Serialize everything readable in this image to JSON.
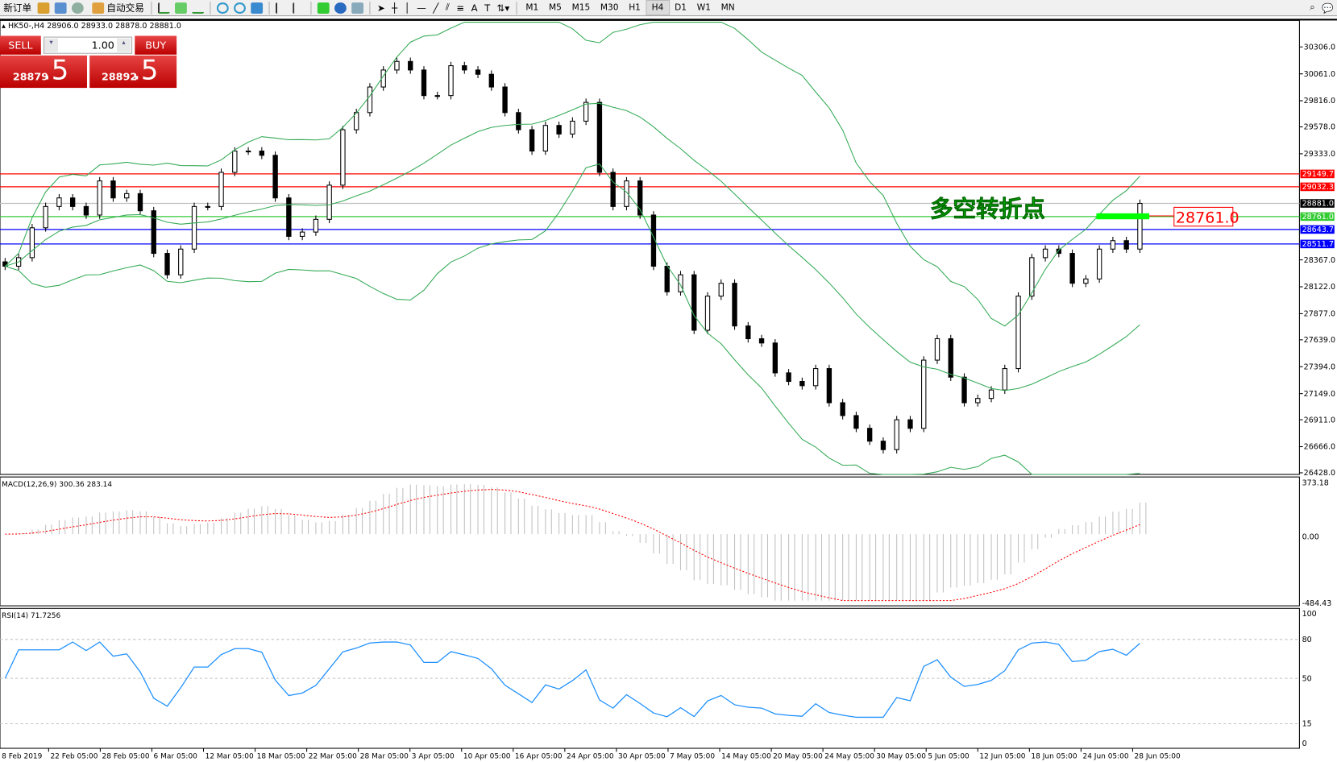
{
  "toolbar": {
    "new_order": "新订单",
    "auto_trading": "自动交易",
    "timeframes": [
      "M1",
      "M5",
      "M15",
      "M30",
      "H1",
      "H4",
      "D1",
      "W1",
      "MN"
    ],
    "active_timeframe": "H4"
  },
  "info": "HK50-,H4  28906.0 28933.0 28878.0 28881.0",
  "trade": {
    "sell": "SELL",
    "buy": "BUY",
    "volume": "1.00",
    "sell_price_main": "28879",
    "sell_price_big": ".5",
    "buy_price_main": "28892",
    "buy_price_big": ".5",
    "color": "#d42020"
  },
  "annotation": {
    "text": "多空转折点",
    "color": "#00dd00",
    "level_label": "28761.0"
  },
  "macd_label": "MACD(12,26,9) 300.36 283.14",
  "rsi_label": "RSI(14) 71.7256",
  "chart_data": {
    "type": "candlestick",
    "symbol": "HK50-",
    "timeframe": "H4",
    "last_ohlc": {
      "open": 28906.0,
      "high": 28933.0,
      "low": 28878.0,
      "close": 28881.0
    },
    "price_ticks": [
      30306.0,
      30061.0,
      29816.0,
      29578.0,
      29333.0,
      28367.0,
      28122.0,
      27877.0,
      27639.0,
      27394.0,
      27149.0,
      26911.0,
      26666.0,
      26428.0
    ],
    "price_range": [
      26428,
      30306
    ],
    "closes": [
      28309,
      28387,
      28659,
      28853,
      28931,
      28853,
      28775,
      29086,
      28931,
      28970,
      28814,
      28426,
      28231,
      28465,
      28853,
      28853,
      29164,
      29358,
      29358,
      29319,
      28931,
      28581,
      28620,
      28736,
      29047,
      29552,
      29708,
      29941,
      30096,
      30174,
      30096,
      29863,
      29863,
      30135,
      30096,
      30057,
      29941,
      29708,
      29552,
      29358,
      29591,
      29513,
      29630,
      29801,
      29164,
      28853,
      29086,
      28775,
      28309,
      28076,
      28231,
      27726,
      28037,
      28154,
      27765,
      27649,
      27610,
      27338,
      27260,
      27221,
      27377,
      27066,
      26949,
      26833,
      26716,
      26639,
      26911,
      26833,
      27454,
      27649,
      27299,
      27066,
      27105,
      27182,
      27377,
      28037,
      28387,
      28465,
      28426,
      28154,
      28193,
      28465,
      28542,
      28465,
      28881
    ],
    "hlines": [
      {
        "value": 29149.7,
        "color": "#ff0000"
      },
      {
        "value": 29032.3,
        "color": "#ff0000"
      },
      {
        "value": 28881.0,
        "color": "#c0c0c0",
        "bg": "#000000"
      },
      {
        "value": 28761.0,
        "color": "#33cc33"
      },
      {
        "value": 28643.7,
        "color": "#0000ff"
      },
      {
        "value": 28511.7,
        "color": "#0000ff"
      }
    ],
    "hline_labels": [
      "29149.7",
      "29032.3",
      "28881.0",
      "28761.0",
      "28643.7",
      "28511.7"
    ],
    "bollinger": {
      "period": 20,
      "deviation": 2,
      "color": "#33aa55"
    },
    "macd": {
      "fast": 12,
      "slow": 26,
      "signal": 9,
      "range": [
        -484.43,
        373.18
      ],
      "ticks": [
        "373.18",
        "0.00",
        "-484.43"
      ],
      "histogram_color": "#c0c0c0",
      "signal_color": "#ff0000"
    },
    "rsi": {
      "period": 14,
      "ticks": [
        "100",
        "80",
        "50",
        "15",
        "0"
      ],
      "levels": [
        80,
        50,
        15
      ],
      "color": "#1e90ff"
    },
    "x_labels": [
      "8 Feb 2019",
      "22 Feb 05:00",
      "28 Feb 05:00",
      "6 Mar 05:00",
      "12 Mar 05:00",
      "18 Mar 05:00",
      "22 Mar 05:00",
      "28 Mar 05:00",
      "3 Apr 05:00",
      "10 Apr 05:00",
      "16 Apr 05:00",
      "24 Apr 05:00",
      "30 Apr 05:00",
      "7 May 05:00",
      "14 May 05:00",
      "20 May 05:00",
      "24 May 05:00",
      "30 May 05:00",
      "5 Jun 05:00",
      "12 Jun 05:00",
      "18 Jun 05:00",
      "24 Jun 05:00",
      "28 Jun 05:00"
    ]
  }
}
